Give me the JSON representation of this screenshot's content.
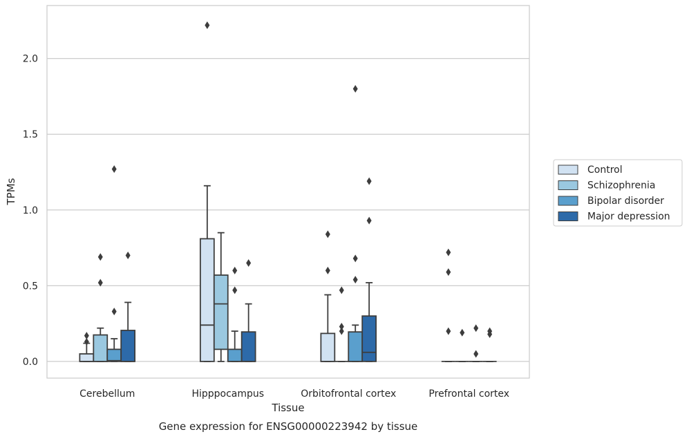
{
  "chart_data": {
    "type": "box",
    "title": "",
    "xlabel": "Tissue",
    "ylabel": "TPMs",
    "caption": "Gene expression for ENSG00000223942 by tissue",
    "categories": [
      "Cerebellum",
      "Hipppocampus",
      "Orbitofrontal cortex",
      "Prefrontal cortex"
    ],
    "ylim": [
      -0.11,
      2.35
    ],
    "yticks": [
      "0.0",
      "0.5",
      "1.0",
      "1.5",
      "2.0"
    ],
    "grid": true,
    "legend_position": "right",
    "series": [
      {
        "name": "Control",
        "color": "#d1e2f2",
        "boxes": [
          {
            "q1": 0.0,
            "median": 0.0,
            "q3": 0.05,
            "whislo": 0.0,
            "whishi": 0.12,
            "fliers": [
              0.13,
              0.17
            ]
          },
          {
            "q1": 0.0,
            "median": 0.24,
            "q3": 0.81,
            "whislo": 0.0,
            "whishi": 1.16,
            "fliers": [
              2.22
            ]
          },
          {
            "q1": 0.0,
            "median": 0.0,
            "q3": 0.185,
            "whislo": 0.0,
            "whishi": 0.44,
            "fliers": [
              0.6,
              0.84
            ]
          },
          {
            "q1": 0.0,
            "median": 0.0,
            "q3": 0.0,
            "whislo": 0.0,
            "whishi": 0.0,
            "fliers": [
              0.2,
              0.59,
              0.72
            ]
          }
        ]
      },
      {
        "name": "Schizophrenia",
        "color": "#9ac8e0",
        "boxes": [
          {
            "q1": 0.0,
            "median": 0.0,
            "q3": 0.175,
            "whislo": 0.0,
            "whishi": 0.22,
            "fliers": [
              0.52,
              0.69
            ]
          },
          {
            "q1": 0.08,
            "median": 0.38,
            "q3": 0.57,
            "whislo": 0.0,
            "whishi": 0.85,
            "fliers": []
          },
          {
            "q1": 0.0,
            "median": 0.0,
            "q3": 0.0,
            "whislo": 0.0,
            "whishi": 0.0,
            "fliers": [
              0.2,
              0.23,
              0.47
            ]
          },
          {
            "q1": 0.0,
            "median": 0.0,
            "q3": 0.0,
            "whislo": 0.0,
            "whishi": 0.0,
            "fliers": [
              0.19
            ]
          }
        ]
      },
      {
        "name": "Bipolar disorder",
        "color": "#5a9fcd",
        "boxes": [
          {
            "q1": 0.0,
            "median": 0.005,
            "q3": 0.08,
            "whislo": 0.0,
            "whishi": 0.15,
            "fliers": [
              0.33,
              1.27
            ]
          },
          {
            "q1": 0.0,
            "median": 0.0,
            "q3": 0.08,
            "whislo": 0.0,
            "whishi": 0.2,
            "fliers": [
              0.47,
              0.6
            ]
          },
          {
            "q1": 0.0,
            "median": 0.0,
            "q3": 0.195,
            "whislo": 0.0,
            "whishi": 0.24,
            "fliers": [
              0.54,
              0.68,
              1.8
            ]
          },
          {
            "q1": 0.0,
            "median": 0.0,
            "q3": 0.0,
            "whislo": 0.0,
            "whishi": 0.0,
            "fliers": [
              0.05,
              0.22
            ]
          }
        ]
      },
      {
        "name": "Major depression",
        "color": "#2d6aa9",
        "boxes": [
          {
            "q1": 0.0,
            "median": 0.0,
            "q3": 0.205,
            "whislo": 0.0,
            "whishi": 0.39,
            "fliers": [
              0.7
            ]
          },
          {
            "q1": 0.0,
            "median": 0.0,
            "q3": 0.195,
            "whislo": 0.0,
            "whishi": 0.38,
            "fliers": [
              0.65
            ]
          },
          {
            "q1": 0.0,
            "median": 0.06,
            "q3": 0.3,
            "whislo": 0.0,
            "whishi": 0.52,
            "fliers": [
              0.93,
              1.19
            ]
          },
          {
            "q1": 0.0,
            "median": 0.0,
            "q3": 0.0,
            "whislo": 0.0,
            "whishi": 0.0,
            "fliers": [
              0.18,
              0.2
            ]
          }
        ]
      }
    ]
  }
}
